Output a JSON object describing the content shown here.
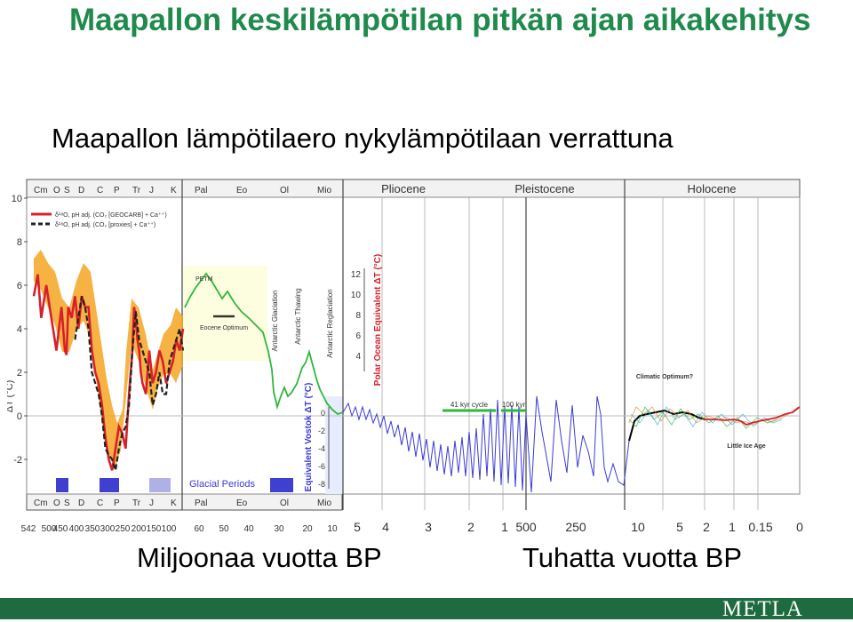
{
  "slide": {
    "title": "Maapallon keskilämpötilan pitkän ajan aikakehitys",
    "subtitle": "Maapallon lämpötilaero nykylämpötilaan verrattuna",
    "caption_left": "Miljoonaa vuotta BP",
    "caption_right": "Tuhatta vuotta BP",
    "logo": "METLA",
    "colors": {
      "title": "#1f8a4c",
      "footer": "#1d6b3e",
      "red": "#d8202a",
      "orange": "#f5a623",
      "green": "#2db83a",
      "blue": "#3b3bd6"
    }
  },
  "chart_data": {
    "type": "line",
    "ylabel": "ΔT (°C)",
    "yticks": [
      "10",
      "8",
      "6",
      "4",
      "2",
      "0",
      "-2"
    ],
    "ylim": [
      -3,
      10
    ],
    "periods_top": [
      "Cm",
      "O",
      "S",
      "D",
      "C",
      "P",
      "Tr",
      "J",
      "K",
      "Pal",
      "Eo",
      "Ol",
      "Mio",
      "Pliocene",
      "Pleistocene",
      "Holocene"
    ],
    "periods_bottom": [
      "Cm",
      "O",
      "S",
      "D",
      "C",
      "P",
      "Tr",
      "J",
      "K",
      "Pal",
      "Eo",
      "Ol",
      "Mio"
    ],
    "xticks_bottom": [
      "542",
      "500",
      "450",
      "400",
      "350",
      "300",
      "250",
      "200",
      "150",
      "100",
      "60",
      "50",
      "40",
      "30",
      "20",
      "10",
      "5",
      "4",
      "3",
      "2",
      "1",
      "500",
      "250",
      "10",
      "5",
      "2",
      "1",
      "0.15",
      "0"
    ],
    "legend": [
      {
        "text": "δ¹⁸O, pH adj. (CO₂ [GEOCARB] + Ca⁺⁺)",
        "color": "#d8202a"
      },
      {
        "text": "δ¹⁸O, pH adj. (CO₂ [proxies] + Ca⁺⁺)",
        "color": "#222222"
      }
    ],
    "annotations": [
      "PETM",
      "Eocene Optimum",
      "Antarctic Glaciation",
      "Antarctic Thawing",
      "Antarctic Reglaciation",
      "41 kyr cycle",
      "100 kyr",
      "Climatic Optimum?",
      "Little Ice Age",
      "Glacial Periods"
    ],
    "right_axis": {
      "label": "Polar Ocean Equivalent ΔT (°C)",
      "ticks": [
        "12",
        "10",
        "8",
        "6",
        "4"
      ]
    },
    "left_inner_axis": {
      "label": "Equivalent Vostok ΔT (°C)",
      "ticks": [
        "0",
        "-2",
        "-4",
        "-6",
        "-8"
      ]
    },
    "series": [
      {
        "name": "δ¹⁸O, pH adj. (CO₂ [GEOCARB] + Ca⁺⁺)",
        "color": "#d8202a",
        "x": [
          542,
          530,
          520,
          505,
          490,
          475,
          460,
          450,
          445,
          440,
          430,
          420,
          410,
          400,
          390,
          380,
          370,
          360,
          350,
          340,
          330,
          320,
          310,
          300,
          290,
          280,
          270,
          260,
          250,
          245,
          240,
          235,
          230,
          225,
          220,
          210,
          200,
          190,
          180,
          170,
          160,
          150,
          140,
          130,
          120,
          110,
          100
        ],
        "y": [
          5.5,
          6.5,
          4.5,
          6.0,
          4.5,
          3.0,
          5.0,
          3.0,
          2.8,
          5.0,
          4.5,
          5.5,
          4.0,
          5.5,
          5.0,
          5.0,
          3.0,
          2.0,
          1.5,
          0.5,
          -1.0,
          -2.0,
          -2.5,
          -1.5,
          -0.5,
          -0.8,
          -1.5,
          1.0,
          3.0,
          5.0,
          4.5,
          3.5,
          3.0,
          2.0,
          1.5,
          1.0,
          3.0,
          1.5,
          2.0,
          3.0,
          2.5,
          1.5,
          2.0,
          2.5,
          3.5,
          3.0,
          4.0
        ]
      },
      {
        "name": "δ¹⁸O, pH adj. (CO₂ [proxies] + Ca⁺⁺)",
        "color": "#222222",
        "x": [
          420,
          410,
          400,
          390,
          380,
          370,
          360,
          350,
          340,
          330,
          320,
          310,
          300,
          290,
          280,
          270,
          260,
          250,
          240,
          230,
          220,
          210,
          200,
          190,
          180,
          170,
          160,
          150,
          140,
          130,
          120,
          110,
          100
        ],
        "y": [
          3.5,
          4.5,
          5.5,
          5.0,
          4.0,
          2.0,
          1.5,
          1.0,
          0.0,
          -1.5,
          -1.8,
          -2.0,
          -2.5,
          -1.5,
          -0.8,
          -0.5,
          0.5,
          3.0,
          4.8,
          3.5,
          3.0,
          2.5,
          2.0,
          0.5,
          1.0,
          2.0,
          1.0,
          1.0,
          2.5,
          3.0,
          3.5,
          4.0,
          3.0
        ]
      }
    ]
  }
}
